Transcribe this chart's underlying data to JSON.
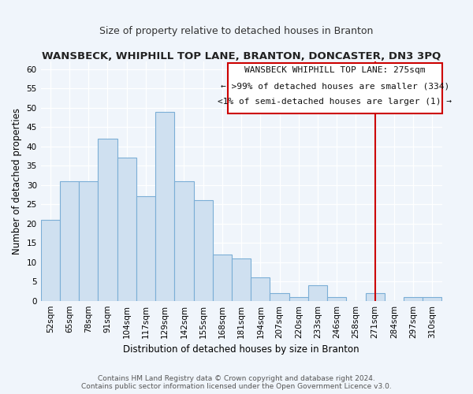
{
  "title": "WANSBECK, WHIPHILL TOP LANE, BRANTON, DONCASTER, DN3 3PQ",
  "subtitle": "Size of property relative to detached houses in Branton",
  "xlabel": "Distribution of detached houses by size in Branton",
  "ylabel": "Number of detached properties",
  "categories": [
    "52sqm",
    "65sqm",
    "78sqm",
    "91sqm",
    "104sqm",
    "117sqm",
    "129sqm",
    "142sqm",
    "155sqm",
    "168sqm",
    "181sqm",
    "194sqm",
    "207sqm",
    "220sqm",
    "233sqm",
    "246sqm",
    "258sqm",
    "271sqm",
    "284sqm",
    "297sqm",
    "310sqm"
  ],
  "values": [
    21,
    31,
    31,
    42,
    37,
    27,
    49,
    31,
    26,
    12,
    11,
    6,
    2,
    1,
    4,
    1,
    0,
    2,
    0,
    1,
    1
  ],
  "bar_color": "#cfe0f0",
  "bar_edgecolor": "#7baed6",
  "background_color": "#f0f5fb",
  "grid_color": "#ffffff",
  "ylim": [
    0,
    62
  ],
  "yticks": [
    0,
    5,
    10,
    15,
    20,
    25,
    30,
    35,
    40,
    45,
    50,
    55,
    60
  ],
  "red_line_index": 17,
  "red_line_color": "#cc0000",
  "annotation_line1": "WANSBECK WHIPHILL TOP LANE: 275sqm",
  "annotation_line2": "← >99% of detached houses are smaller (334)",
  "annotation_line3": "<1% of semi-detached houses are larger (1) →",
  "footer_line1": "Contains HM Land Registry data © Crown copyright and database right 2024.",
  "footer_line2": "Contains public sector information licensed under the Open Government Licence v3.0.",
  "title_fontsize": 9.5,
  "subtitle_fontsize": 9,
  "axis_label_fontsize": 8.5,
  "tick_fontsize": 7.5,
  "annotation_fontsize": 8,
  "footer_fontsize": 6.5
}
